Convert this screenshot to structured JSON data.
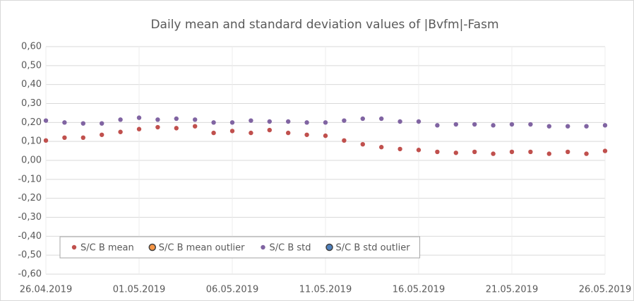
{
  "chart_data": {
    "type": "scatter",
    "title": "Daily mean and standard deviation values of |Bvfm|-Fasm",
    "x": [
      "26.04.2019",
      "27.04.2019",
      "28.04.2019",
      "29.04.2019",
      "30.04.2019",
      "01.05.2019",
      "02.05.2019",
      "03.05.2019",
      "04.05.2019",
      "05.05.2019",
      "06.05.2019",
      "07.05.2019",
      "08.05.2019",
      "09.05.2019",
      "10.05.2019",
      "11.05.2019",
      "12.05.2019",
      "13.05.2019",
      "14.05.2019",
      "15.05.2019",
      "16.05.2019",
      "17.05.2019",
      "18.05.2019",
      "19.05.2019",
      "20.05.2019",
      "21.05.2019",
      "22.05.2019",
      "23.05.2019",
      "24.05.2019",
      "25.05.2019",
      "26.05.2019"
    ],
    "series": [
      {
        "name": "S/C B mean",
        "color": "#c0504d",
        "values": [
          0.105,
          0.12,
          0.12,
          0.135,
          0.15,
          0.165,
          0.175,
          0.17,
          0.18,
          0.145,
          0.155,
          0.145,
          0.16,
          0.145,
          0.135,
          0.13,
          0.105,
          0.085,
          0.07,
          0.06,
          0.055,
          0.045,
          0.04,
          0.045,
          0.035,
          0.045,
          0.045,
          0.035,
          0.045,
          0.035,
          0.05
        ]
      },
      {
        "name": "S/C B mean outlier",
        "color": "#f79646",
        "edgecolor": "#404040",
        "values": [
          null,
          null,
          null,
          null,
          null,
          null,
          null,
          null,
          null,
          null,
          null,
          null,
          null,
          null,
          null,
          null,
          null,
          null,
          null,
          null,
          null,
          null,
          null,
          null,
          null,
          null,
          null,
          null,
          null,
          null,
          null
        ]
      },
      {
        "name": "S/C B std",
        "color": "#8064a2",
        "values": [
          0.21,
          0.2,
          0.195,
          0.195,
          0.215,
          0.225,
          0.215,
          0.22,
          0.215,
          0.2,
          0.2,
          0.21,
          0.205,
          0.205,
          0.2,
          0.2,
          0.21,
          0.22,
          0.22,
          0.205,
          0.205,
          0.185,
          0.19,
          0.19,
          0.185,
          0.19,
          0.19,
          0.18,
          0.18,
          0.18,
          0.185
        ]
      },
      {
        "name": "S/C B std outlier",
        "color": "#4f81bd",
        "edgecolor": "#404040",
        "values": [
          null,
          null,
          null,
          null,
          null,
          null,
          null,
          null,
          null,
          null,
          null,
          null,
          null,
          null,
          null,
          null,
          null,
          null,
          null,
          null,
          null,
          null,
          null,
          null,
          null,
          null,
          null,
          null,
          null,
          null,
          null
        ]
      }
    ],
    "xlim": [
      "26.04.2019",
      "26.05.2019"
    ],
    "xticks": [
      "26.04.2019",
      "01.05.2019",
      "06.05.2019",
      "11.05.2019",
      "16.05.2019",
      "21.05.2019",
      "26.05.2019"
    ],
    "ylim": [
      -0.6,
      0.6
    ],
    "yticks": [
      {
        "value": 0.6,
        "label": "0,60"
      },
      {
        "value": 0.5,
        "label": "0,50"
      },
      {
        "value": 0.4,
        "label": "0,40"
      },
      {
        "value": 0.3,
        "label": "0,30"
      },
      {
        "value": 0.2,
        "label": "0,20"
      },
      {
        "value": 0.1,
        "label": "0,10"
      },
      {
        "value": 0,
        "label": "0,00"
      },
      {
        "value": -0.1,
        "label": "-0,10"
      },
      {
        "value": -0.2,
        "label": "-0,20"
      },
      {
        "value": -0.3,
        "label": "-0,30"
      },
      {
        "value": -0.4,
        "label": "-0,40"
      },
      {
        "value": -0.5,
        "label": "-0,50"
      },
      {
        "value": -0.6,
        "label": "-0,60"
      }
    ],
    "grid": true,
    "legend": "lower left"
  }
}
